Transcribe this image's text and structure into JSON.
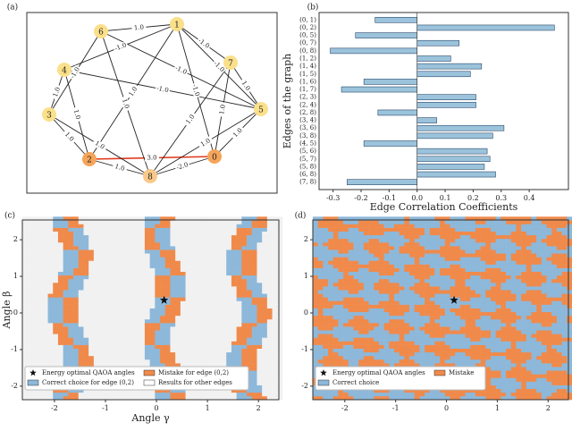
{
  "chart_data": [
    {
      "type": "graph",
      "panel_label": "(a)",
      "nodes": [
        "0",
        "1",
        "2",
        "3",
        "4",
        "5",
        "6",
        "7",
        "8"
      ],
      "edges": [
        {
          "from": 0,
          "to": 1,
          "label": "-1.0"
        },
        {
          "from": 0,
          "to": 2,
          "label": "3.0"
        },
        {
          "from": 0,
          "to": 5,
          "label": "1.0"
        },
        {
          "from": 0,
          "to": 7,
          "label": "1.0"
        },
        {
          "from": 0,
          "to": 8,
          "label": "-2.0"
        },
        {
          "from": 1,
          "to": 2,
          "label": "1.0"
        },
        {
          "from": 1,
          "to": 4,
          "label": "-1.0"
        },
        {
          "from": 1,
          "to": 5,
          "label": "-1.0"
        },
        {
          "from": 1,
          "to": 6,
          "label": "1.0"
        },
        {
          "from": 1,
          "to": 7,
          "label": "-1.0"
        },
        {
          "from": 2,
          "to": 3,
          "label": "1.0"
        },
        {
          "from": 2,
          "to": 4,
          "label": "1.0"
        },
        {
          "from": 2,
          "to": 8,
          "label": "1.0"
        },
        {
          "from": 3,
          "to": 4,
          "label": "1.0"
        },
        {
          "from": 3,
          "to": 6,
          "label": "-1.0"
        },
        {
          "from": 3,
          "to": 8,
          "label": "1.0"
        },
        {
          "from": 4,
          "to": 5,
          "label": "-1.0"
        },
        {
          "from": 5,
          "to": 6,
          "label": "-1.0"
        },
        {
          "from": 5,
          "to": 7,
          "label": "1.0"
        },
        {
          "from": 5,
          "to": 8,
          "label": "1.0"
        },
        {
          "from": 6,
          "to": 8,
          "label": "1.0"
        },
        {
          "from": 7,
          "to": 8,
          "label": "1.0"
        }
      ]
    },
    {
      "type": "bar",
      "panel_label": "(b)",
      "orientation": "horizontal",
      "x_label": "Edge Correlation Coefficients",
      "y_label": "Edges of the graph",
      "categories": [
        "(0, 1)",
        "(0, 2)",
        "(0, 5)",
        "(0, 7)",
        "(0, 8)",
        "(1, 2)",
        "(1, 4)",
        "(1, 5)",
        "(1, 6)",
        "(1, 7)",
        "(2, 3)",
        "(2, 4)",
        "(2, 8)",
        "(3, 4)",
        "(3, 6)",
        "(3, 8)",
        "(4, 5)",
        "(5, 6)",
        "(5, 7)",
        "(5, 8)",
        "(6, 8)",
        "(7, 8)"
      ],
      "values": [
        -0.15,
        0.49,
        -0.22,
        0.15,
        -0.31,
        0.12,
        0.23,
        0.19,
        -0.19,
        -0.27,
        0.21,
        0.21,
        -0.14,
        0.07,
        0.31,
        0.27,
        -0.19,
        0.25,
        0.26,
        0.24,
        0.28,
        -0.25
      ],
      "color": "#9cc3dc",
      "highlight_index": 1,
      "highlight_color": "#e8603c",
      "xlim": [
        -0.35,
        0.54
      ],
      "xticks": [
        -0.3,
        -0.2,
        -0.1,
        {
          "value": 0,
          "label": "0.0"
        },
        0.1,
        0.2,
        0.3,
        0.4
      ]
    },
    {
      "type": "heatmap",
      "panel_label": "(c)",
      "x_label": "Angle γ",
      "y_label": "Angle β",
      "xlim": [
        -2.63,
        2.4
      ],
      "ylim": [
        -2.37,
        2.54
      ],
      "xticks": [
        -2,
        -1,
        0,
        1,
        2
      ],
      "yticks": [
        -2,
        -1,
        0,
        1,
        2
      ],
      "optimum": {
        "name": "Energy optimal QAOA angles",
        "x": 0.15,
        "y": 0.35
      },
      "legend": [
        {
          "name": "Mistake for edge (0,2)",
          "color": "#f08a4b"
        },
        {
          "name": "Correct choice for edge (0,2)",
          "color": "#8db8da"
        },
        {
          "name": "Results for other edges",
          "color": "#ffffff"
        }
      ]
    },
    {
      "type": "heatmap",
      "panel_label": "(d)",
      "xlim": [
        -2.63,
        2.4
      ],
      "ylim": [
        -2.37,
        2.54
      ],
      "xticks": [
        -2,
        -1,
        0,
        1,
        2
      ],
      "yticks": [
        -2,
        -1,
        0,
        1,
        2
      ],
      "optimum": {
        "name": "Energy optimal QAOA angles",
        "x": 0.15,
        "y": 0.35
      },
      "legend": [
        {
          "name": "Mistake",
          "color": "#f08a4b"
        },
        {
          "name": "Correct choice",
          "color": "#8db8da"
        }
      ]
    }
  ]
}
